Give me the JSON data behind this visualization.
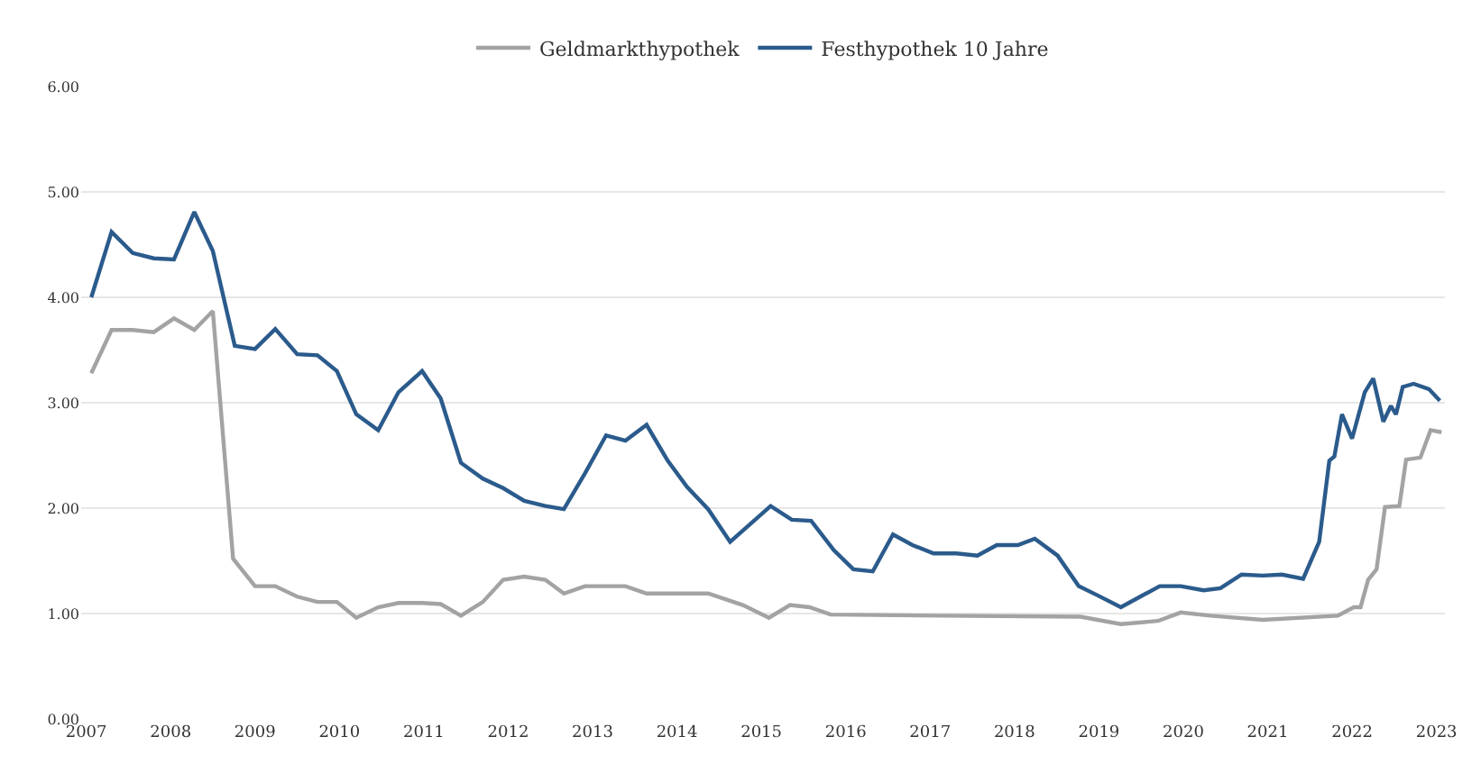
{
  "chart_data": {
    "type": "line",
    "series": [
      {
        "name": "Geldmarkthypothek",
        "color": "#a3a3a3",
        "x": [
          2007.06,
          2007.3,
          2007.55,
          2007.8,
          2008.04,
          2008.28,
          2008.5,
          2008.74,
          2009.0,
          2009.24,
          2009.5,
          2009.74,
          2009.97,
          2010.2,
          2010.46,
          2010.7,
          2010.98,
          2011.2,
          2011.44,
          2011.7,
          2011.94,
          2012.19,
          2012.44,
          2012.66,
          2012.91,
          2013.16,
          2013.39,
          2013.64,
          2013.89,
          2014.37,
          2014.78,
          2015.09,
          2015.34,
          2015.57,
          2015.82,
          2017.12,
          2018.78,
          2019.26,
          2019.7,
          2019.97,
          2020.32,
          2020.94,
          2021.83,
          2022.02,
          2022.1,
          2022.19,
          2022.29,
          2022.39,
          2022.56,
          2022.64,
          2022.81,
          2022.93,
          2023.06
        ],
        "values": [
          3.28,
          3.69,
          3.69,
          3.67,
          3.8,
          3.69,
          3.87,
          1.52,
          1.26,
          1.26,
          1.16,
          1.11,
          1.11,
          0.96,
          1.06,
          1.1,
          1.1,
          1.09,
          0.98,
          1.11,
          1.32,
          1.35,
          1.32,
          1.19,
          1.26,
          1.26,
          1.26,
          1.19,
          1.19,
          1.19,
          1.08,
          0.96,
          1.08,
          1.06,
          0.99,
          0.98,
          0.97,
          0.9,
          0.93,
          1.01,
          0.98,
          0.94,
          0.98,
          1.06,
          1.06,
          1.32,
          1.42,
          2.01,
          2.02,
          2.46,
          2.48,
          2.74,
          2.72
        ]
      },
      {
        "name": "Festhypothek 10 Jahre",
        "color": "#2b5b8c",
        "x": [
          2007.06,
          2007.3,
          2007.55,
          2007.8,
          2008.04,
          2008.28,
          2008.5,
          2008.76,
          2009.0,
          2009.24,
          2009.5,
          2009.74,
          2009.97,
          2010.2,
          2010.46,
          2010.7,
          2010.98,
          2011.2,
          2011.44,
          2011.7,
          2011.94,
          2012.19,
          2012.44,
          2012.66,
          2012.91,
          2013.16,
          2013.39,
          2013.64,
          2013.89,
          2014.12,
          2014.37,
          2014.63,
          2015.11,
          2015.36,
          2015.59,
          2015.86,
          2016.09,
          2016.32,
          2016.56,
          2016.79,
          2017.04,
          2017.31,
          2017.56,
          2017.79,
          2018.04,
          2018.24,
          2018.51,
          2018.76,
          2018.99,
          2019.26,
          2019.49,
          2019.72,
          2019.97,
          2020.24,
          2020.44,
          2020.69,
          2020.94,
          2021.17,
          2021.42,
          2021.61,
          2021.73,
          2021.79,
          2021.88,
          2022.0,
          2022.15,
          2022.25,
          2022.37,
          2022.46,
          2022.52,
          2022.6,
          2022.73,
          2022.91,
          2023.04
        ],
        "values": [
          4.0,
          4.62,
          4.42,
          4.37,
          4.36,
          4.81,
          4.44,
          3.54,
          3.51,
          3.7,
          3.46,
          3.45,
          3.3,
          2.89,
          2.74,
          3.1,
          3.3,
          3.04,
          2.43,
          2.28,
          2.19,
          2.07,
          2.02,
          1.99,
          2.33,
          2.69,
          2.64,
          2.79,
          2.45,
          2.2,
          1.99,
          1.68,
          2.02,
          1.89,
          1.88,
          1.6,
          1.42,
          1.4,
          1.75,
          1.65,
          1.57,
          1.57,
          1.55,
          1.65,
          1.65,
          1.71,
          1.55,
          1.26,
          1.17,
          1.06,
          1.16,
          1.26,
          1.26,
          1.22,
          1.24,
          1.37,
          1.36,
          1.37,
          1.33,
          1.68,
          2.45,
          2.49,
          2.89,
          2.66,
          3.1,
          3.23,
          2.82,
          2.97,
          2.89,
          3.15,
          3.18,
          3.13,
          3.02
        ]
      }
    ],
    "xlim": [
      2006.94,
      2023.1
    ],
    "xticks": [
      2007,
      2008,
      2009,
      2010,
      2011,
      2012,
      2013,
      2014,
      2015,
      2016,
      2017,
      2018,
      2019,
      2020,
      2021,
      2022,
      2023
    ],
    "ylim": [
      0,
      6
    ],
    "yticks": [
      {
        "value": 0,
        "label": "0.00"
      },
      {
        "value": 1,
        "label": "1.00"
      },
      {
        "value": 2,
        "label": "2.00"
      },
      {
        "value": 3,
        "label": "3.00"
      },
      {
        "value": 4,
        "label": "4.00"
      },
      {
        "value": 5,
        "label": "5.00"
      },
      {
        "value": 6,
        "label": "6.00"
      }
    ],
    "grid": "y",
    "legend": "top",
    "marker": "none",
    "line_style": "solid"
  }
}
